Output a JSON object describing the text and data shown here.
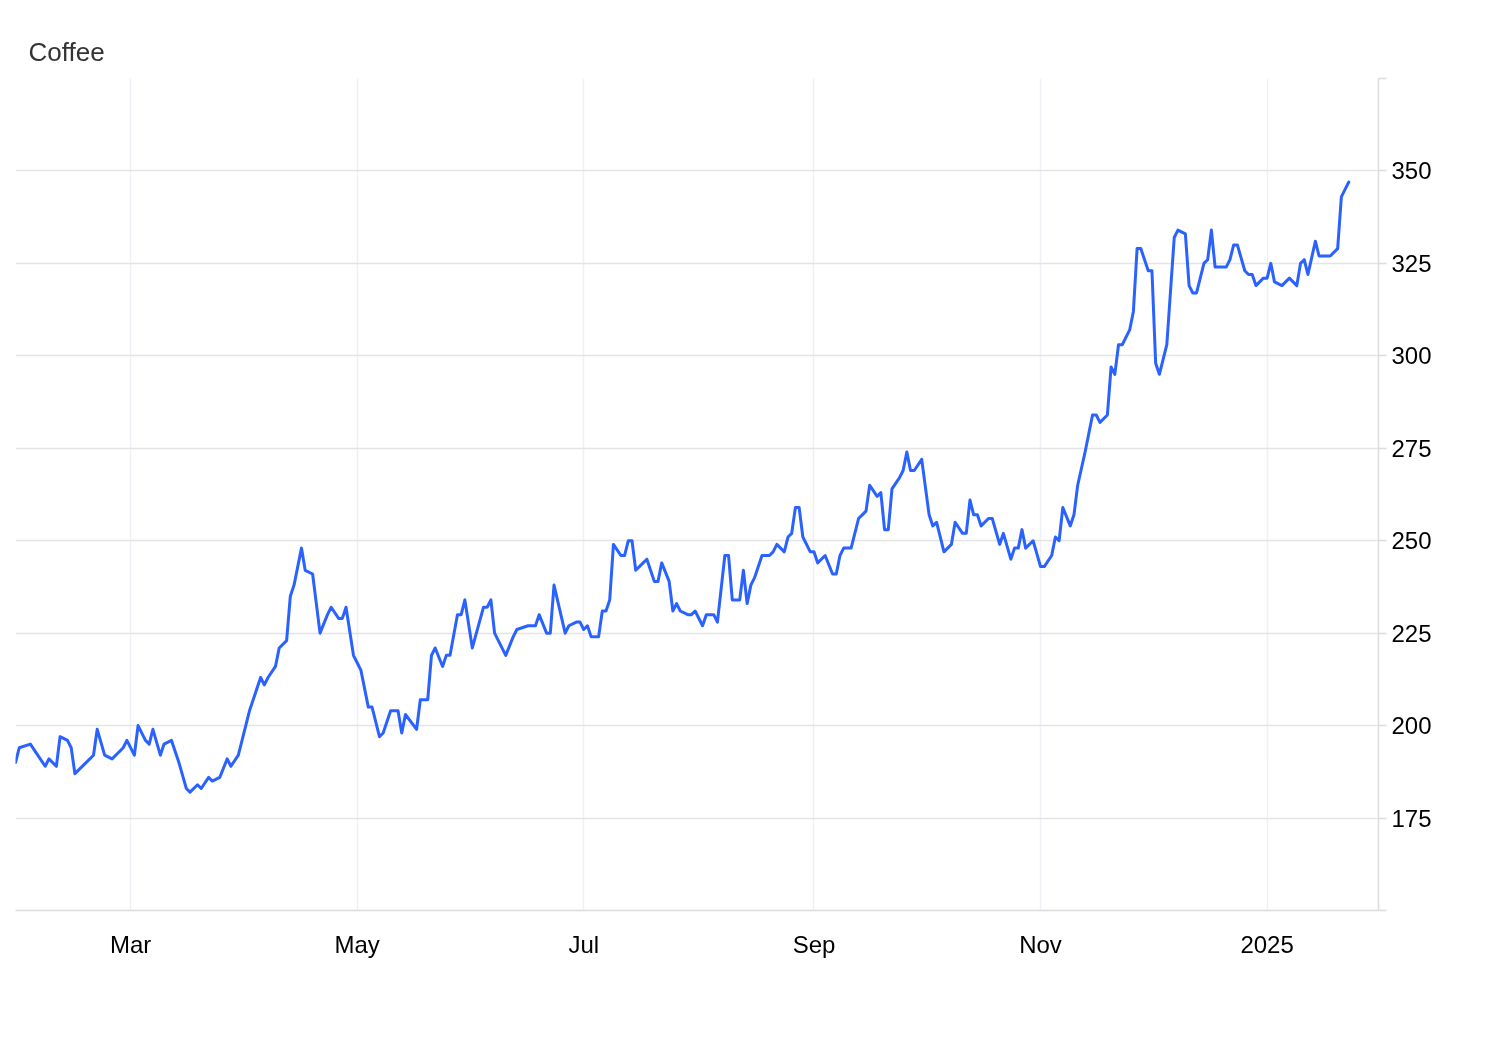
{
  "chart_data": {
    "type": "line",
    "title": "Coffee",
    "xlim": [
      "2024-01-30",
      "2025-01-31"
    ],
    "xticks": [
      {
        "value": "2024-03-01",
        "label": "Mar"
      },
      {
        "value": "2024-05-01",
        "label": "May"
      },
      {
        "value": "2024-07-01",
        "label": "Jul"
      },
      {
        "value": "2024-09-01",
        "label": "Sep"
      },
      {
        "value": "2024-11-01",
        "label": "Nov"
      },
      {
        "value": "2025-01-01",
        "label": "2025"
      }
    ],
    "ylim": [
      150,
      375
    ],
    "yticks": [
      {
        "value": 150,
        "label": null
      },
      175,
      200,
      225,
      250,
      275,
      300,
      325,
      350,
      {
        "value": 375,
        "label": null
      }
    ],
    "grid": true,
    "x": [
      "2024-01-30",
      "2024-01-31",
      "2024-02-03",
      "2024-02-07",
      "2024-02-08",
      "2024-02-10",
      "2024-02-11",
      "2024-02-13",
      "2024-02-14",
      "2024-02-15",
      "2024-02-18",
      "2024-02-20",
      "2024-02-21",
      "2024-02-23",
      "2024-02-25",
      "2024-02-27",
      "2024-02-28",
      "2024-02-29",
      "2024-03-02",
      "2024-03-03",
      "2024-03-05",
      "2024-03-06",
      "2024-03-07",
      "2024-03-09",
      "2024-03-10",
      "2024-03-12",
      "2024-03-14",
      "2024-03-16",
      "2024-03-17",
      "2024-03-19",
      "2024-03-20",
      "2024-03-22",
      "2024-03-23",
      "2024-03-25",
      "2024-03-27",
      "2024-03-28",
      "2024-03-30",
      "2024-04-02",
      "2024-04-03",
      "2024-04-05",
      "2024-04-06",
      "2024-04-07",
      "2024-04-09",
      "2024-04-10",
      "2024-04-12",
      "2024-04-13",
      "2024-04-14",
      "2024-04-16",
      "2024-04-17",
      "2024-04-19",
      "2024-04-21",
      "2024-04-23",
      "2024-04-24",
      "2024-04-26",
      "2024-04-27",
      "2024-04-28",
      "2024-04-30",
      "2024-05-01",
      "2024-05-02",
      "2024-05-04",
      "2024-05-05",
      "2024-05-07",
      "2024-05-08",
      "2024-05-10",
      "2024-05-12",
      "2024-05-13",
      "2024-05-14",
      "2024-05-17",
      "2024-05-18",
      "2024-05-20",
      "2024-05-21",
      "2024-05-22",
      "2024-05-24",
      "2024-05-25",
      "2024-05-26",
      "2024-05-28",
      "2024-05-29",
      "2024-05-30",
      "2024-06-01",
      "2024-06-04",
      "2024-06-05",
      "2024-06-06",
      "2024-06-07",
      "2024-06-10",
      "2024-06-12",
      "2024-06-13",
      "2024-06-16",
      "2024-06-18",
      "2024-06-19",
      "2024-06-21",
      "2024-06-22",
      "2024-06-23",
      "2024-06-26",
      "2024-06-27",
      "2024-06-29",
      "2024-06-30",
      "2024-07-01",
      "2024-07-02",
      "2024-07-03",
      "2024-07-05",
      "2024-07-06",
      "2024-07-07",
      "2024-07-08",
      "2024-07-09",
      "2024-07-11",
      "2024-07-12",
      "2024-07-13",
      "2024-07-14",
      "2024-07-15",
      "2024-07-17",
      "2024-07-18",
      "2024-07-19",
      "2024-07-20",
      "2024-07-21",
      "2024-07-22",
      "2024-07-24",
      "2024-07-25",
      "2024-07-26",
      "2024-07-27",
      "2024-07-29",
      "2024-07-30",
      "2024-07-31",
      "2024-08-02",
      "2024-08-03",
      "2024-08-05",
      "2024-08-06",
      "2024-08-08",
      "2024-08-09",
      "2024-08-10",
      "2024-08-12",
      "2024-08-13",
      "2024-08-14",
      "2024-08-15",
      "2024-08-16",
      "2024-08-18",
      "2024-08-20",
      "2024-08-21",
      "2024-08-22",
      "2024-08-24",
      "2024-08-25",
      "2024-08-26",
      "2024-08-27",
      "2024-08-28",
      "2024-08-29",
      "2024-08-31",
      "2024-09-01",
      "2024-09-02",
      "2024-09-04",
      "2024-09-06",
      "2024-09-07",
      "2024-09-08",
      "2024-09-09",
      "2024-09-10",
      "2024-09-11",
      "2024-09-13",
      "2024-09-14",
      "2024-09-15",
      "2024-09-16",
      "2024-09-18",
      "2024-09-19",
      "2024-09-20",
      "2024-09-21",
      "2024-09-22",
      "2024-09-24",
      "2024-09-25",
      "2024-09-26",
      "2024-09-27",
      "2024-09-28",
      "2024-09-30",
      "2024-10-02",
      "2024-10-03",
      "2024-10-04",
      "2024-10-06",
      "2024-10-08",
      "2024-10-09",
      "2024-10-11",
      "2024-10-12",
      "2024-10-13",
      "2024-10-14",
      "2024-10-15",
      "2024-10-16",
      "2024-10-18",
      "2024-10-19",
      "2024-10-21",
      "2024-10-22",
      "2024-10-24",
      "2024-10-25",
      "2024-10-26",
      "2024-10-27",
      "2024-10-28",
      "2024-10-30",
      "2024-11-01",
      "2024-11-02",
      "2024-11-04",
      "2024-11-05",
      "2024-11-06",
      "2024-11-07",
      "2024-11-09",
      "2024-11-10",
      "2024-11-11",
      "2024-11-13",
      "2024-11-14",
      "2024-11-15",
      "2024-11-16",
      "2024-11-17",
      "2024-11-19",
      "2024-11-20",
      "2024-11-21",
      "2024-11-22",
      "2024-11-23",
      "2024-11-25",
      "2024-11-26",
      "2024-11-27",
      "2024-11-28",
      "2024-11-30",
      "2024-12-01",
      "2024-12-02",
      "2024-12-03",
      "2024-12-05",
      "2024-12-07",
      "2024-12-08",
      "2024-12-10",
      "2024-12-11",
      "2024-12-12",
      "2024-12-13",
      "2024-12-15",
      "2024-12-16",
      "2024-12-17",
      "2024-12-18",
      "2024-12-20",
      "2024-12-21",
      "2024-12-22",
      "2024-12-23",
      "2024-12-24",
      "2024-12-26",
      "2024-12-27",
      "2024-12-28",
      "2024-12-29",
      "2024-12-31",
      "2025-01-01",
      "2025-01-02",
      "2025-01-03",
      "2025-01-05",
      "2025-01-07",
      "2025-01-09",
      "2025-01-10",
      "2025-01-11",
      "2025-01-12",
      "2025-01-14",
      "2025-01-15",
      "2025-01-18",
      "2025-01-20",
      "2025-01-21",
      "2025-01-22",
      "2025-01-23"
    ],
    "series": [
      {
        "color": "#2962ff",
        "values": [
          190,
          194,
          195,
          189,
          191,
          189,
          197,
          196,
          194,
          187,
          190,
          192,
          199,
          192,
          191,
          193,
          194,
          196,
          192,
          200,
          196,
          195,
          199,
          192,
          195,
          196,
          190,
          183,
          182,
          184,
          183,
          186,
          185,
          186,
          191,
          189,
          192,
          204,
          207,
          213,
          211,
          213,
          216,
          221,
          223,
          235,
          238,
          248,
          242,
          241,
          225,
          230,
          232,
          229,
          229,
          232,
          219,
          217,
          215,
          205,
          205,
          197,
          198,
          204,
          204,
          198,
          203,
          199,
          207,
          207,
          219,
          221,
          216,
          219,
          219,
          230,
          230,
          234,
          221,
          232,
          232,
          234,
          225,
          219,
          224,
          226,
          227,
          227,
          230,
          225,
          225,
          238,
          225,
          227,
          228,
          228,
          226,
          227,
          224,
          224,
          231,
          231,
          234,
          249,
          246,
          246,
          250,
          250,
          242,
          244,
          245,
          242,
          239,
          239,
          244,
          239,
          231,
          233,
          231,
          230,
          230,
          231,
          227,
          230,
          230,
          228,
          246,
          246,
          234,
          234,
          242,
          233,
          238,
          240,
          246,
          246,
          247,
          249,
          247,
          251,
          252,
          259,
          259,
          251,
          247,
          247,
          244,
          246,
          241,
          241,
          246,
          248,
          248,
          248,
          256,
          257,
          258,
          265,
          262,
          263,
          253,
          253,
          264,
          267,
          269,
          274,
          269,
          269,
          272,
          257,
          254,
          255,
          247,
          249,
          255,
          252,
          252,
          261,
          257,
          257,
          254,
          256,
          256,
          249,
          252,
          245,
          248,
          248,
          253,
          248,
          250,
          243,
          243,
          246,
          251,
          250,
          259,
          254,
          257,
          265,
          274,
          279,
          284,
          284,
          282,
          284,
          297,
          295,
          303,
          303,
          307,
          312,
          329,
          329,
          323,
          323,
          298,
          295,
          303,
          332,
          334,
          333,
          319,
          317,
          317,
          325,
          326,
          334,
          324,
          324,
          324,
          326,
          330,
          330,
          323,
          322,
          322,
          319,
          321,
          321,
          325,
          320,
          319,
          321,
          319,
          325,
          326,
          322,
          331,
          327,
          327,
          329,
          343,
          345,
          347
        ]
      }
    ]
  }
}
